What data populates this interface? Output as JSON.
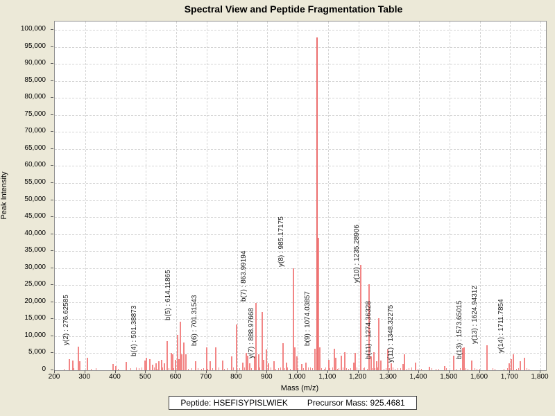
{
  "window": {
    "title": "Spectral View and Peptide Fragmentation Table"
  },
  "footer": {
    "peptide": "Peptide: HSEFISYPISLWIEK",
    "precursor_mass": "Precursor Mass: 925.4681"
  },
  "colors": {
    "background": "#ece9d8",
    "plot_background": "#ffffff",
    "grid": "#d4d4d4",
    "axis": "#919191",
    "peak": "#f28585",
    "peak_strong": "#ec6e6e",
    "text": "#000000"
  },
  "chart_data": {
    "type": "bar",
    "subtype": "mass-spectrum-sticks",
    "title": "Spectral View and Peptide Fragmentation Table",
    "xlabel": "Mass (m/z)",
    "ylabel": "Peak Intensity",
    "xlim": [
      200,
      1800
    ],
    "ylim": [
      0,
      100000
    ],
    "x_tick_step": 100,
    "y_tick_step": 5000,
    "grid": true,
    "x_tick_labels": [
      "200",
      "300",
      "400",
      "500",
      "600",
      "700",
      "800",
      "900",
      "1,000",
      "1,100",
      "1,200",
      "1,300",
      "1,400",
      "1,500",
      "1,600",
      "1,700",
      "1,800"
    ],
    "y_tick_labels": [
      "0",
      "5,000",
      "10,000",
      "15,000",
      "20,000",
      "25,000",
      "30,000",
      "35,000",
      "40,000",
      "45,000",
      "50,000",
      "55,000",
      "60,000",
      "65,000",
      "70,000",
      "75,000",
      "80,000",
      "85,000",
      "90,000",
      "95,000",
      "100,000"
    ],
    "annotated_peaks": [
      {
        "label": "y(2)",
        "mz": "276.62585",
        "intensity": 7000
      },
      {
        "label": "b(4)",
        "mz": "501.38873",
        "intensity": 3600
      },
      {
        "label": "b(5)",
        "mz": "614.11865",
        "intensity": 14300
      },
      {
        "label": "b(6)",
        "mz": "701.31543",
        "intensity": 6700
      },
      {
        "label": "b(7)",
        "mz": "863.99194",
        "intensity": 19700
      },
      {
        "label": "y(7)",
        "mz": "888.97668",
        "intensity": 3000
      },
      {
        "label": "y(8)",
        "mz": "985.17175",
        "intensity": 30000
      },
      {
        "label": "b(9)",
        "mz": "1074.03857",
        "intensity": 6700
      },
      {
        "label": "y(10)",
        "mz": "1235.28906",
        "intensity": 25300
      },
      {
        "label": "b(11)",
        "mz": "1274.36328",
        "intensity": 2900
      },
      {
        "label": "y(11)",
        "mz": "1348.32275",
        "intensity": 1900
      },
      {
        "label": "b(13)",
        "mz": "1573.65015",
        "intensity": 2800
      },
      {
        "label": "y(13)",
        "mz": "1624.94312",
        "intensity": 7300
      },
      {
        "label": "y(14)",
        "mz": "1711.7854",
        "intensity": 4600
      }
    ],
    "peaks": [
      [
        249,
        3200
      ],
      [
        259,
        2900
      ],
      [
        283,
        2700
      ],
      [
        307,
        3700
      ],
      [
        392,
        1800
      ],
      [
        400,
        1200
      ],
      [
        435,
        2500
      ],
      [
        496,
        2800
      ],
      [
        512,
        3200
      ],
      [
        522,
        1600
      ],
      [
        534,
        2100
      ],
      [
        543,
        2650
      ],
      [
        551,
        3100
      ],
      [
        562,
        2000
      ],
      [
        571,
        8500
      ],
      [
        583,
        5000
      ],
      [
        589,
        4700
      ],
      [
        597,
        3000
      ],
      [
        604,
        10400
      ],
      [
        608,
        3300
      ],
      [
        619,
        4700
      ],
      [
        626,
        8200
      ],
      [
        633,
        4700
      ],
      [
        665,
        2650
      ],
      [
        713,
        2650
      ],
      [
        730,
        6800
      ],
      [
        753,
        2850
      ],
      [
        782,
        4100
      ],
      [
        799,
        13500
      ],
      [
        819,
        2300
      ],
      [
        831,
        5100
      ],
      [
        836,
        4300
      ],
      [
        842,
        2000
      ],
      [
        858,
        4100
      ],
      [
        871,
        4700
      ],
      [
        884,
        17200
      ],
      [
        896,
        6100
      ],
      [
        905,
        2000
      ],
      [
        922,
        2650
      ],
      [
        951,
        8000
      ],
      [
        963,
        2300
      ],
      [
        991,
        6700
      ],
      [
        997,
        4000
      ],
      [
        1014,
        1800
      ],
      [
        1028,
        2300
      ],
      [
        1058,
        6300
      ],
      [
        1065,
        97800
      ],
      [
        1067.5,
        39000
      ],
      [
        1102,
        3000
      ],
      [
        1122,
        6300
      ],
      [
        1126,
        3700
      ],
      [
        1145,
        4300
      ],
      [
        1156,
        5300
      ],
      [
        1184,
        2300
      ],
      [
        1190,
        5100
      ],
      [
        1208,
        31000
      ],
      [
        1243,
        4000
      ],
      [
        1252,
        5300
      ],
      [
        1260,
        2650
      ],
      [
        1268,
        15300
      ],
      [
        1298,
        6100
      ],
      [
        1309,
        2000
      ],
      [
        1353,
        4700
      ],
      [
        1388,
        2300
      ],
      [
        1435,
        1100
      ],
      [
        1484,
        1300
      ],
      [
        1514,
        4350
      ],
      [
        1545,
        6500
      ],
      [
        1549,
        6800
      ],
      [
        1698,
        2000
      ],
      [
        1705,
        3300
      ],
      [
        1734,
        2600
      ],
      [
        1747,
        3700
      ],
      [
        232,
        500
      ],
      [
        265,
        600
      ],
      [
        320,
        400
      ],
      [
        338,
        700
      ],
      [
        410,
        500
      ],
      [
        452,
        600
      ],
      [
        470,
        800
      ],
      [
        478,
        600
      ],
      [
        488,
        900
      ],
      [
        505,
        700
      ],
      [
        516,
        600
      ],
      [
        528,
        800
      ],
      [
        539,
        500
      ],
      [
        556,
        900
      ],
      [
        576,
        700
      ],
      [
        593,
        600
      ],
      [
        640,
        500
      ],
      [
        652,
        700
      ],
      [
        672,
        600
      ],
      [
        684,
        500
      ],
      [
        692,
        700
      ],
      [
        706,
        500
      ],
      [
        721,
        600
      ],
      [
        742,
        800
      ],
      [
        760,
        500
      ],
      [
        770,
        700
      ],
      [
        790,
        900
      ],
      [
        810,
        600
      ],
      [
        826,
        800
      ],
      [
        848,
        700
      ],
      [
        876,
        900
      ],
      [
        900,
        600
      ],
      [
        912,
        800
      ],
      [
        930,
        500
      ],
      [
        938,
        700
      ],
      [
        946,
        900
      ],
      [
        958,
        600
      ],
      [
        968,
        800
      ],
      [
        976,
        500
      ],
      [
        1002,
        700
      ],
      [
        1020,
        600
      ],
      [
        1036,
        800
      ],
      [
        1044,
        900
      ],
      [
        1050,
        600
      ],
      [
        1080,
        700
      ],
      [
        1088,
        500
      ],
      [
        1094,
        800
      ],
      [
        1108,
        600
      ],
      [
        1116,
        900
      ],
      [
        1132,
        500
      ],
      [
        1138,
        700
      ],
      [
        1150,
        800
      ],
      [
        1162,
        600
      ],
      [
        1168,
        500
      ],
      [
        1176,
        700
      ],
      [
        1196,
        900
      ],
      [
        1216,
        600
      ],
      [
        1222,
        800
      ],
      [
        1230,
        500
      ],
      [
        1246,
        700
      ],
      [
        1256,
        600
      ],
      [
        1264,
        800
      ],
      [
        1286,
        500
      ],
      [
        1292,
        700
      ],
      [
        1304,
        600
      ],
      [
        1316,
        800
      ],
      [
        1322,
        500
      ],
      [
        1332,
        600
      ],
      [
        1340,
        700
      ],
      [
        1360,
        500
      ],
      [
        1368,
        600
      ],
      [
        1378,
        800
      ],
      [
        1398,
        500
      ],
      [
        1410,
        400
      ],
      [
        1444,
        600
      ],
      [
        1456,
        500
      ],
      [
        1466,
        400
      ],
      [
        1492,
        600
      ],
      [
        1524,
        500
      ],
      [
        1538,
        700
      ],
      [
        1556,
        600
      ],
      [
        1562,
        500
      ],
      [
        1584,
        700
      ],
      [
        1592,
        500
      ],
      [
        1602,
        400
      ],
      [
        1644,
        600
      ],
      [
        1652,
        500
      ],
      [
        1682,
        400
      ],
      [
        1692,
        600
      ],
      [
        1722,
        500
      ],
      [
        1728,
        700
      ],
      [
        1756,
        600
      ],
      [
        1764,
        500
      ]
    ]
  }
}
